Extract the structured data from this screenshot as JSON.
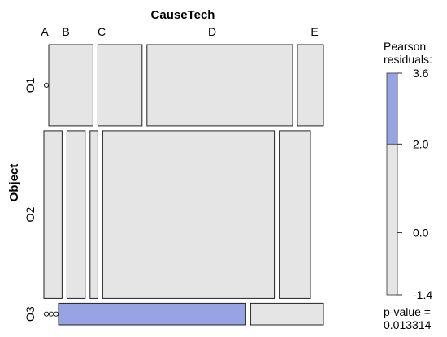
{
  "chart_data": {
    "type": "mosaic",
    "x_variable": "CauseTech",
    "y_variable": "Object",
    "x_levels": [
      "A",
      "B",
      "C",
      "D",
      "E"
    ],
    "y_levels": [
      "O1",
      "O2",
      "O3"
    ],
    "row_proportions": [
      0.3,
      0.62,
      0.08
    ],
    "cells": [
      {
        "row": "O1",
        "col_proportions": [
          0.0,
          0.17,
          0.17,
          0.56,
          0.1
        ],
        "residuals": [
          0.0,
          0.0,
          0.0,
          0.0,
          0.0
        ]
      },
      {
        "row": "O2",
        "col_proportions": [
          0.07,
          0.07,
          0.03,
          0.66,
          0.12
        ],
        "residuals": [
          0.0,
          0.0,
          0.0,
          0.0,
          0.0
        ]
      },
      {
        "row": "O3",
        "col_proportions": [
          0.0,
          0.0,
          0.0,
          0.72,
          0.28
        ],
        "residuals": [
          0.0,
          0.0,
          0.0,
          2.9,
          0.0
        ]
      }
    ],
    "legend": {
      "title_line1": "Pearson",
      "title_line2": "residuals:",
      "ticks": [
        "3.6",
        "2.0",
        "0.0",
        "-1.4"
      ],
      "range": [
        -1.4,
        3.6
      ],
      "shade_threshold": 2.0,
      "positive_color": "#97a3e3",
      "neutral_color": "#e5e5e5"
    },
    "p_value_label": "p-value =",
    "p_value": "0.013314"
  }
}
